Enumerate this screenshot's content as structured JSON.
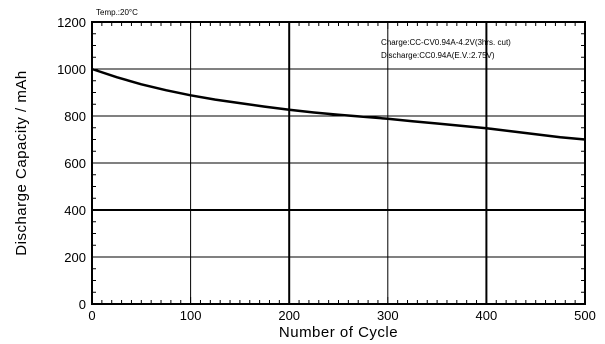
{
  "chart_data": {
    "type": "line",
    "title": "",
    "xlabel": "Number of Cycle",
    "ylabel": "Discharge  Capacity  /  mAh",
    "xlim": [
      0,
      500
    ],
    "ylim": [
      0,
      1200
    ],
    "x_ticks": [
      0,
      100,
      200,
      300,
      400,
      500
    ],
    "y_ticks": [
      0,
      200,
      400,
      600,
      800,
      1000,
      1200
    ],
    "grid": true,
    "legend": "none",
    "annotations": {
      "temp": "Temp.:20°C",
      "charge": "Charge:CC-CV0.94A-4.2V(3hrs. cut)",
      "discharge": "Discharge:CC0.94A(E.V.:2.75V)"
    },
    "series": [
      {
        "x": [
          0,
          25,
          50,
          75,
          100,
          125,
          150,
          175,
          200,
          225,
          250,
          275,
          300,
          325,
          350,
          375,
          400,
          425,
          450,
          475,
          500
        ],
        "y": [
          1000,
          965,
          935,
          910,
          888,
          870,
          855,
          840,
          827,
          815,
          805,
          797,
          788,
          778,
          768,
          758,
          748,
          735,
          722,
          710,
          700
        ],
        "color": "#000000"
      }
    ]
  }
}
